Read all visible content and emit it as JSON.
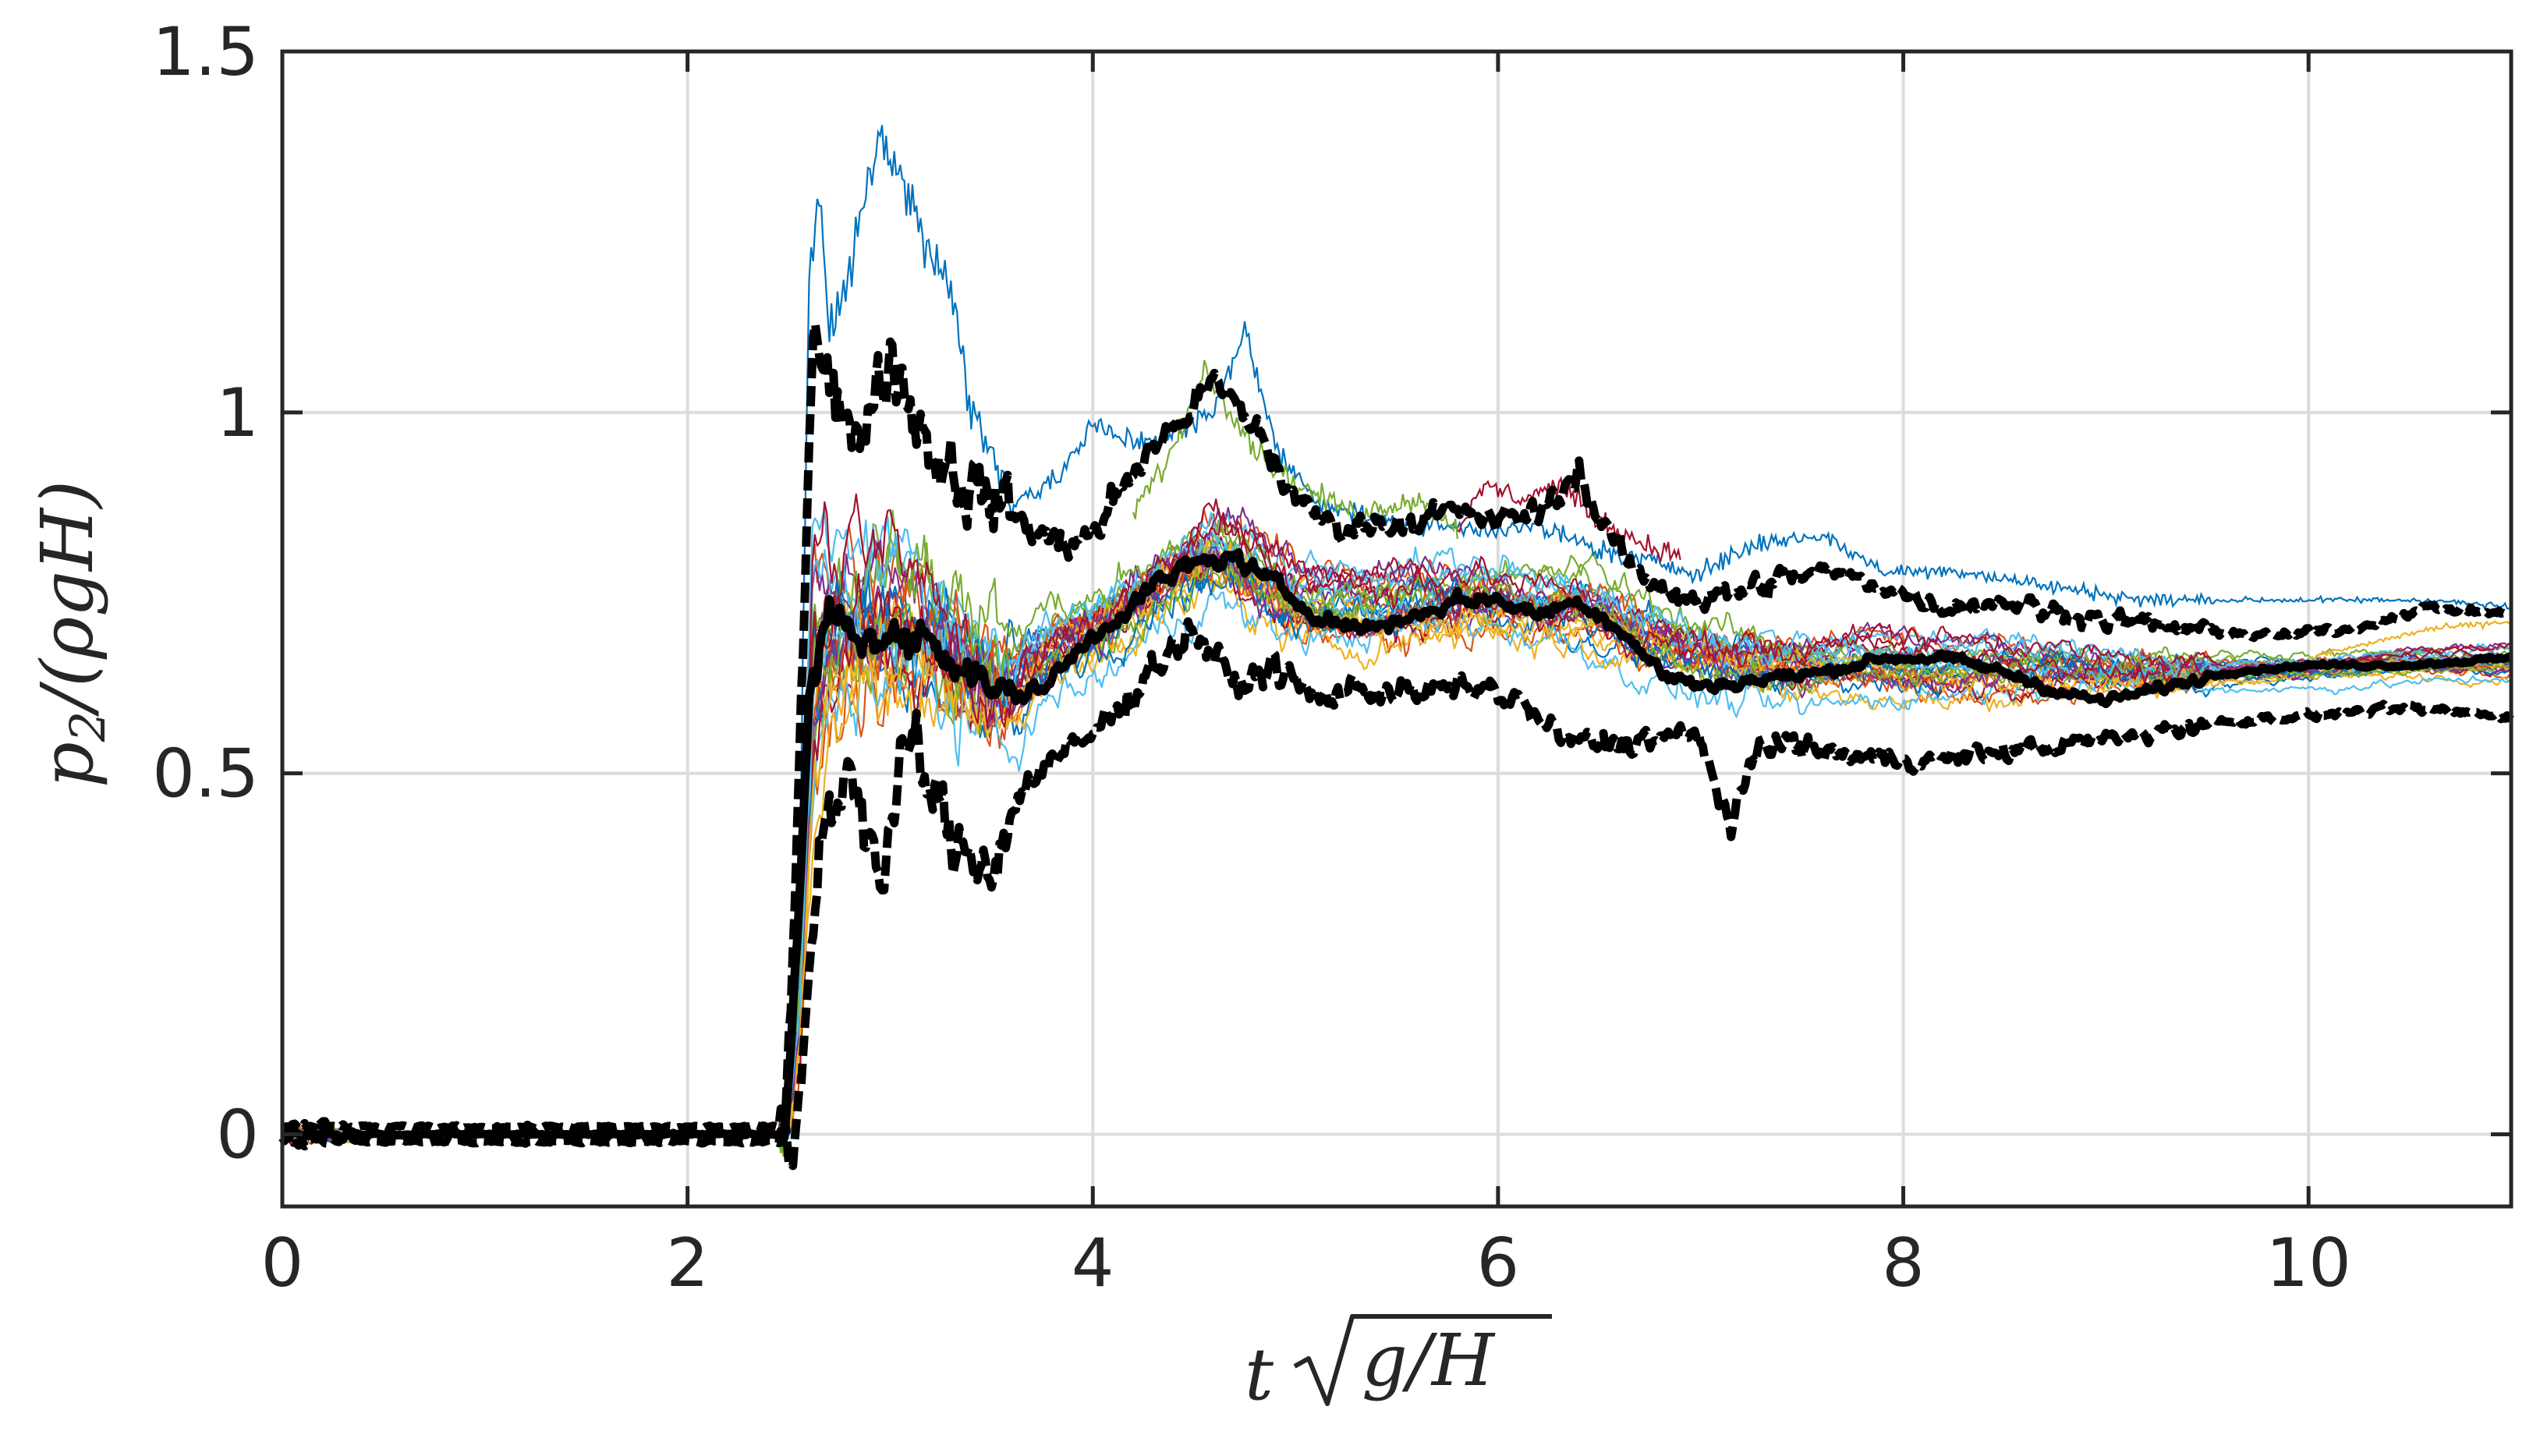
{
  "chart_data": {
    "type": "line",
    "xlabel": {
      "pre": "t",
      "radicand": "g/H"
    },
    "ylabel": {
      "base": "p",
      "sub": "2",
      "rest": "/(ρgH)"
    },
    "xlim": [
      0,
      11
    ],
    "ylim": [
      -0.1,
      1.5
    ],
    "x_ticks": [
      0,
      2,
      4,
      6,
      8,
      10
    ],
    "x_tick_labels": [
      "0",
      "2",
      "4",
      "6",
      "8",
      "10"
    ],
    "y_ticks": [
      0,
      0.5,
      1,
      1.5
    ],
    "y_tick_labels": [
      "0",
      "0.5",
      "1",
      "1.5"
    ],
    "grid": true,
    "legend": "none",
    "ensemble_colors": [
      "#0072BD",
      "#D95319",
      "#EDB120",
      "#7E2F8E",
      "#77AC30",
      "#4DBEEE",
      "#A2142F"
    ],
    "ensemble_count": 28,
    "mean_series": {
      "style": "thick solid black",
      "color": "#000000",
      "x": [
        0,
        0.5,
        1,
        2,
        2.48,
        2.55,
        2.6,
        2.7,
        2.8,
        3.0,
        3.2,
        3.4,
        3.6,
        3.8,
        4.0,
        4.3,
        4.5,
        4.7,
        4.9,
        5.1,
        5.3,
        5.5,
        5.8,
        6.0,
        6.2,
        6.4,
        6.6,
        6.8,
        7.0,
        7.3,
        7.6,
        7.9,
        8.2,
        8.5,
        8.8,
        9.0,
        9.3,
        9.6,
        10.0,
        10.5,
        11.0
      ],
      "y": [
        0,
        0,
        0,
        0,
        0,
        0.3,
        0.6,
        0.72,
        0.7,
        0.68,
        0.69,
        0.64,
        0.6,
        0.63,
        0.69,
        0.76,
        0.79,
        0.8,
        0.76,
        0.72,
        0.7,
        0.71,
        0.74,
        0.74,
        0.72,
        0.74,
        0.7,
        0.64,
        0.62,
        0.63,
        0.64,
        0.66,
        0.66,
        0.64,
        0.61,
        0.6,
        0.62,
        0.64,
        0.65,
        0.65,
        0.66
      ]
    },
    "upper_envelope": {
      "style": "thick dashed black",
      "color": "#000000",
      "x": [
        0,
        2,
        2.48,
        2.55,
        2.62,
        2.7,
        2.8,
        3.0,
        3.2,
        3.4,
        3.6,
        3.8,
        4.0,
        4.2,
        4.4,
        4.6,
        4.8,
        5.0,
        5.2,
        5.5,
        5.8,
        6.0,
        6.2,
        6.4,
        6.5,
        6.7,
        7.0,
        7.3,
        7.6,
        7.9,
        8.2,
        8.5,
        8.8,
        9.1,
        9.4,
        9.8,
        10.2,
        10.6,
        11.0
      ],
      "y": [
        0.01,
        0.01,
        0.01,
        0.5,
        1.15,
        1.05,
        0.95,
        1.08,
        0.95,
        0.9,
        0.86,
        0.82,
        0.83,
        0.92,
        0.98,
        1.04,
        0.98,
        0.88,
        0.84,
        0.85,
        0.86,
        0.85,
        0.86,
        0.92,
        0.85,
        0.77,
        0.74,
        0.76,
        0.78,
        0.76,
        0.73,
        0.74,
        0.72,
        0.71,
        0.7,
        0.69,
        0.7,
        0.73,
        0.72
      ]
    },
    "lower_envelope": {
      "style": "thick dashed black",
      "color": "#000000",
      "x": [
        0,
        2,
        2.48,
        2.52,
        2.58,
        2.65,
        2.8,
        2.95,
        3.1,
        3.3,
        3.5,
        3.7,
        3.9,
        4.1,
        4.3,
        4.5,
        4.7,
        4.9,
        5.1,
        5.3,
        5.6,
        5.9,
        6.1,
        6.3,
        6.5,
        6.8,
        7.0,
        7.15,
        7.3,
        7.6,
        7.9,
        8.2,
        8.5,
        8.8,
        9.1,
        9.5,
        10.0,
        10.5,
        11.0
      ],
      "y": [
        -0.01,
        -0.01,
        -0.01,
        -0.08,
        0.15,
        0.4,
        0.52,
        0.35,
        0.55,
        0.4,
        0.38,
        0.5,
        0.53,
        0.58,
        0.65,
        0.7,
        0.62,
        0.65,
        0.6,
        0.62,
        0.61,
        0.62,
        0.6,
        0.55,
        0.54,
        0.55,
        0.55,
        0.42,
        0.55,
        0.53,
        0.52,
        0.52,
        0.53,
        0.54,
        0.55,
        0.57,
        0.58,
        0.59,
        0.58
      ]
    },
    "ensemble_band": {
      "x": [
        0,
        2,
        2.48,
        2.55,
        2.62,
        2.7,
        2.85,
        3.0,
        3.2,
        3.4,
        3.6,
        3.8,
        4.0,
        4.3,
        4.6,
        4.8,
        5.0,
        5.3,
        5.6,
        5.9,
        6.2,
        6.4,
        6.7,
        7.0,
        7.4,
        7.8,
        8.2,
        8.6,
        9.0,
        9.5,
        10.0,
        10.5,
        11.0
      ],
      "upper": [
        0.02,
        0.005,
        0.005,
        0.4,
        1.05,
        0.95,
        0.9,
        1.0,
        0.88,
        0.82,
        0.78,
        0.8,
        0.8,
        0.86,
        0.92,
        0.9,
        0.84,
        0.83,
        0.84,
        0.84,
        0.83,
        0.86,
        0.8,
        0.76,
        0.74,
        0.75,
        0.73,
        0.72,
        0.7,
        0.69,
        0.69,
        0.7,
        0.7
      ],
      "lower": [
        -0.02,
        -0.005,
        -0.005,
        -0.05,
        0.2,
        0.42,
        0.5,
        0.42,
        0.5,
        0.45,
        0.45,
        0.55,
        0.58,
        0.66,
        0.7,
        0.66,
        0.64,
        0.63,
        0.63,
        0.64,
        0.62,
        0.6,
        0.58,
        0.57,
        0.56,
        0.56,
        0.56,
        0.57,
        0.58,
        0.59,
        0.6,
        0.61,
        0.61
      ]
    },
    "highlight_traces": [
      {
        "color": "#0072BD",
        "x": [
          2.55,
          2.6,
          2.65,
          2.7,
          2.8,
          2.9,
          2.95,
          3.0,
          3.1,
          3.2,
          3.3,
          3.4,
          3.6,
          3.8,
          4.0,
          4.2,
          4.4,
          4.6,
          4.75,
          4.9,
          5.1,
          5.4,
          5.8,
          6.2,
          6.6,
          7.0,
          7.3,
          7.6,
          7.9,
          8.3,
          8.7,
          9.2,
          9.7,
          10.2,
          10.6,
          11.0
        ],
        "y": [
          0.3,
          1.2,
          1.28,
          1.1,
          1.2,
          1.33,
          1.38,
          1.35,
          1.3,
          1.22,
          1.18,
          1.0,
          0.88,
          0.9,
          0.98,
          0.96,
          0.97,
          1.0,
          1.12,
          0.95,
          0.88,
          0.85,
          0.84,
          0.84,
          0.8,
          0.78,
          0.82,
          0.83,
          0.78,
          0.78,
          0.76,
          0.74,
          0.74,
          0.74,
          0.74,
          0.73
        ]
      },
      {
        "color": "#77AC30",
        "x": [
          4.2,
          4.4,
          4.55,
          4.65,
          4.8,
          5.0,
          5.3,
          5.6,
          5.8
        ],
        "y": [
          0.86,
          0.95,
          1.06,
          1.02,
          0.95,
          0.9,
          0.86,
          0.88,
          0.84
        ]
      },
      {
        "color": "#A2142F",
        "x": [
          5.8,
          5.95,
          6.1,
          6.3,
          6.5,
          6.7,
          6.9
        ],
        "y": [
          0.84,
          0.9,
          0.88,
          0.9,
          0.85,
          0.82,
          0.8
        ]
      },
      {
        "color": "#EDB120",
        "x": [
          10.0,
          10.3,
          10.6,
          11.0
        ],
        "y": [
          0.66,
          0.68,
          0.7,
          0.71
        ]
      }
    ]
  }
}
